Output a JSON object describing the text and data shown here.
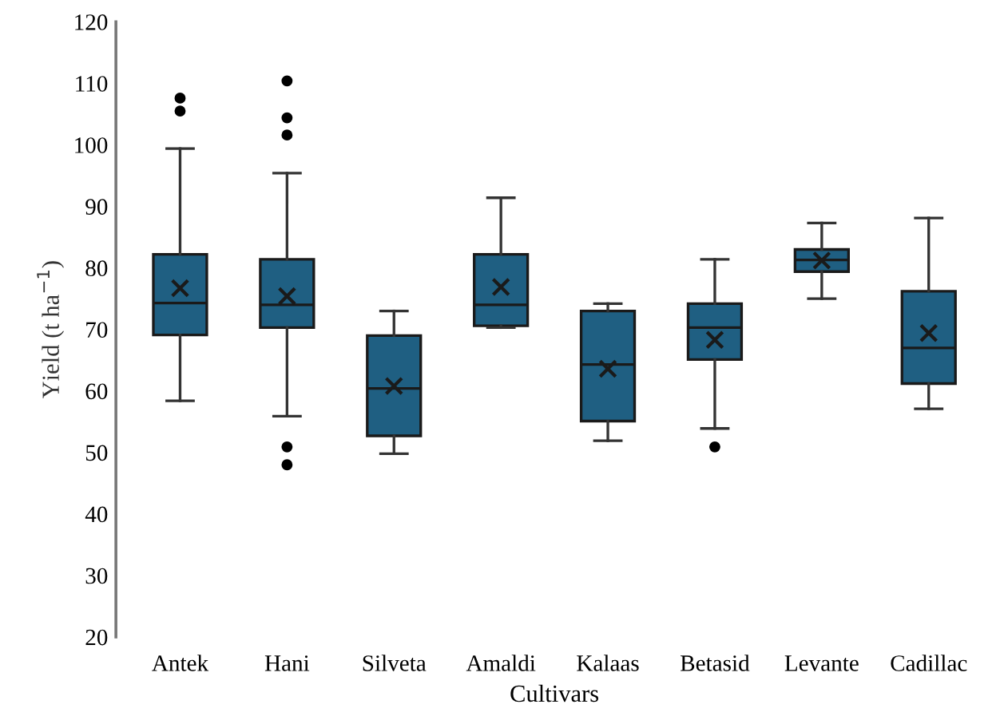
{
  "chart_data": {
    "type": "box",
    "xlabel": "Cultivars",
    "ylabel": "Yield (t ha$^{−1}$)",
    "categories": [
      "Antek",
      "Hani",
      "Silveta",
      "Amaldi",
      "Kalaas",
      "Betasid",
      "Levante",
      "Cadillac"
    ],
    "color": "#1f5f82",
    "boxes": [
      {
        "low": 58.4,
        "q1": 69.1,
        "median": 74.3,
        "q3": 82.2,
        "high": 99.4,
        "mean": 76.7,
        "outliers": [
          107.6,
          105.5
        ]
      },
      {
        "low": 55.9,
        "q1": 70.3,
        "median": 74,
        "q3": 81.4,
        "high": 95.4,
        "mean": 75.4,
        "outliers": [
          110.4,
          104.4,
          101.6,
          50.9,
          48
        ]
      },
      {
        "low": 49.8,
        "q1": 52.7,
        "median": 60.4,
        "q3": 69,
        "high": 73,
        "mean": 60.8
      },
      {
        "low": 70.3,
        "q1": 70.6,
        "median": 74,
        "q3": 82.2,
        "high": 91.4,
        "mean": 76.9
      },
      {
        "low": 51.9,
        "q1": 55.1,
        "median": 64.3,
        "q3": 73,
        "high": 74.2,
        "mean": 63.6
      },
      {
        "low": 53.9,
        "q1": 65.1,
        "median": 70.3,
        "q3": 74.2,
        "high": 81.4,
        "mean": 68.3,
        "outliers": [
          50.9
        ]
      },
      {
        "low": 75,
        "q1": 79.4,
        "median": 81.3,
        "q3": 83,
        "high": 87.3,
        "mean": 81.2
      },
      {
        "low": 57.1,
        "q1": 61.2,
        "median": 67,
        "q3": 76.2,
        "high": 88.1,
        "mean": 69.4
      }
    ],
    "ylim": [
      20,
      120
    ],
    "yticks": [
      20,
      30,
      40,
      50,
      60,
      70,
      80,
      90,
      100,
      110,
      120
    ],
    "grid": false
  }
}
